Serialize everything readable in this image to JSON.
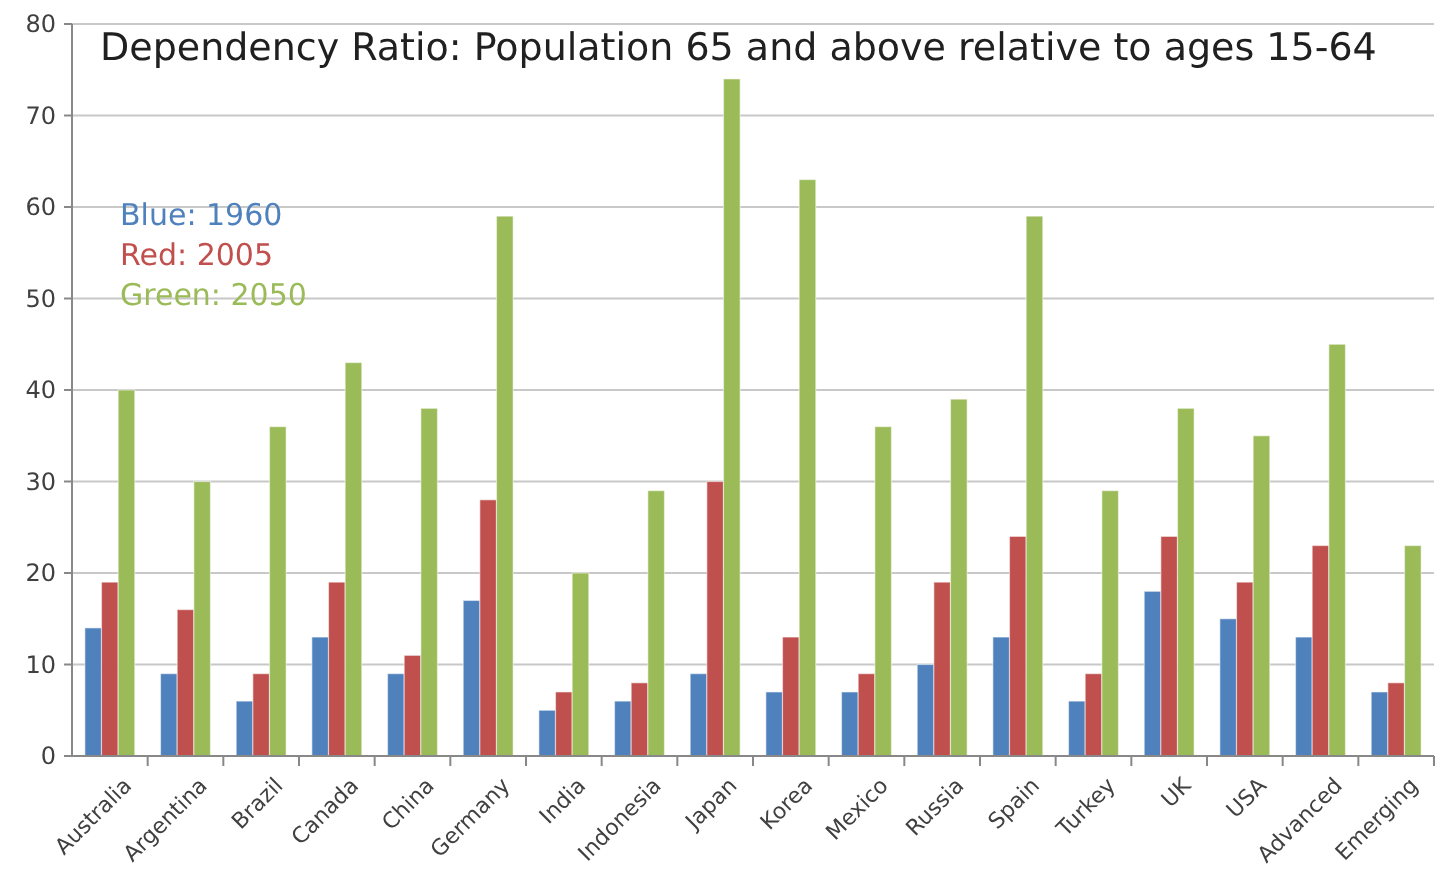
{
  "chart_data": {
    "type": "bar",
    "title": "Dependency Ratio: Population 65 and above relative to  ages 15-64",
    "categories": [
      "Australia",
      "Argentina",
      "Brazil",
      "Canada",
      "China",
      "Germany",
      "India",
      "Indonesia",
      "Japan",
      "Korea",
      "Mexico",
      "Russia",
      "Spain",
      "Turkey",
      "UK",
      "USA",
      "Advanced",
      "Emerging"
    ],
    "series": [
      {
        "name": "Blue: 1960",
        "color": "#4f81bd",
        "values": [
          14,
          9,
          6,
          13,
          9,
          17,
          5,
          6,
          9,
          7,
          7,
          10,
          13,
          6,
          18,
          15,
          13,
          7
        ]
      },
      {
        "name": "Red: 2005",
        "color": "#c0504d",
        "values": [
          19,
          16,
          9,
          19,
          11,
          28,
          7,
          8,
          30,
          13,
          9,
          19,
          24,
          9,
          24,
          19,
          23,
          8
        ]
      },
      {
        "name": "Green: 2050",
        "color": "#9bbb59",
        "values": [
          40,
          30,
          36,
          43,
          38,
          59,
          20,
          29,
          74,
          63,
          36,
          39,
          59,
          29,
          38,
          35,
          45,
          23
        ]
      }
    ],
    "ylim": [
      0,
      80
    ],
    "yticks": [
      0,
      10,
      20,
      30,
      40,
      50,
      60,
      70,
      80
    ],
    "grid": "y",
    "legend": "top left"
  }
}
